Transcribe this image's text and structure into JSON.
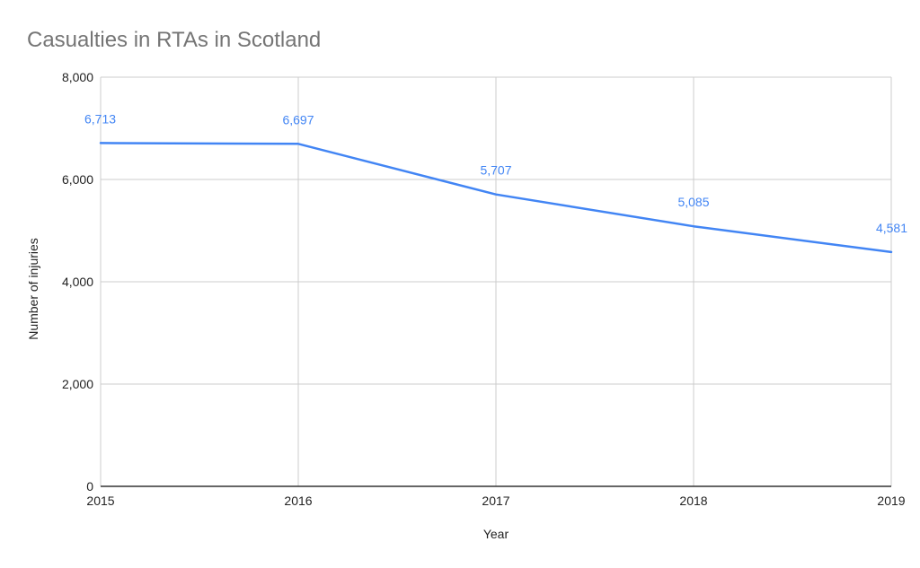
{
  "chart_data": {
    "type": "line",
    "title": "Casualties in RTAs in Scotland",
    "xlabel": "Year",
    "ylabel": "Number of injuries",
    "categories": [
      "2015",
      "2016",
      "2017",
      "2018",
      "2019"
    ],
    "series": [
      {
        "values": [
          6713,
          6697,
          5707,
          5085,
          4581
        ],
        "data_labels": [
          "6,713",
          "6,697",
          "5,707",
          "5,085",
          "4,581"
        ],
        "color": "#4285f4"
      }
    ],
    "ylim": [
      0,
      8000
    ],
    "y_ticks": [
      0,
      2000,
      4000,
      6000,
      8000
    ],
    "y_tick_labels": [
      "0",
      "2,000",
      "4,000",
      "6,000",
      "8,000"
    ],
    "grid": true,
    "legend": "none",
    "colors": {
      "grid": "#cccccc",
      "baseline": "#333333",
      "title": "#757575",
      "text": "#222222"
    }
  }
}
